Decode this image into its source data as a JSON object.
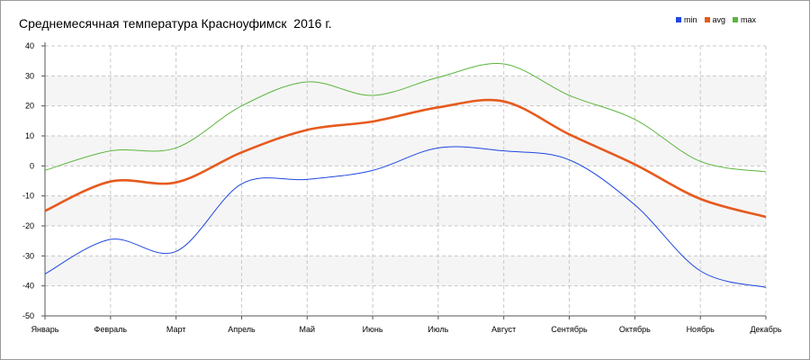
{
  "chart_data": {
    "type": "line",
    "title": "Среднемесячная температура Красноуфимск  2016 г.",
    "xlabel": "",
    "ylabel": "",
    "categories": [
      "Январь",
      "Февраль",
      "Март",
      "Апрель",
      "Май",
      "Июнь",
      "Июль",
      "Август",
      "Сентябрь",
      "Октябрь",
      "Ноябрь",
      "Декабрь"
    ],
    "ylim": [
      -50,
      40
    ],
    "yticks": [
      -50,
      -40,
      -30,
      -20,
      -10,
      0,
      10,
      20,
      30,
      40
    ],
    "grid": true,
    "legend_position": "top-right",
    "series": [
      {
        "name": "min",
        "color": "#1e47e0",
        "values": [
          -36,
          -24.5,
          -28.5,
          -6,
          -4.5,
          -1.5,
          6,
          5,
          2,
          -13,
          -35,
          -40.5
        ]
      },
      {
        "name": "avg",
        "color": "#e65a1e",
        "values": [
          -15,
          -5.2,
          -5.5,
          4.5,
          12,
          14.8,
          19.5,
          21.5,
          10.5,
          0.5,
          -11,
          -17
        ]
      },
      {
        "name": "max",
        "color": "#5bb53c",
        "values": [
          -1.5,
          5,
          6,
          20,
          28,
          23.5,
          29.5,
          34,
          23.5,
          15.5,
          1.5,
          -2
        ]
      }
    ]
  }
}
